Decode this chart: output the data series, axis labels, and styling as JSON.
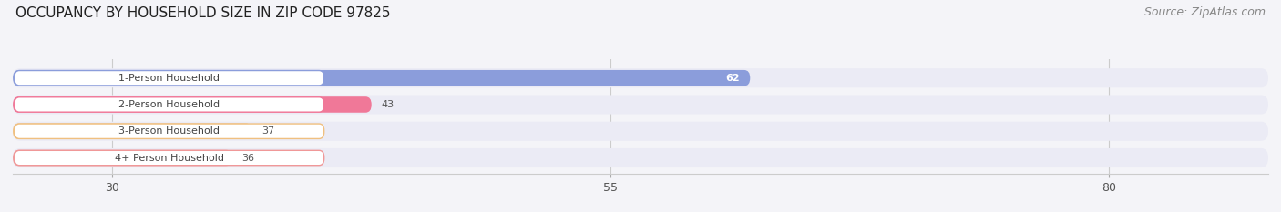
{
  "title": "OCCUPANCY BY HOUSEHOLD SIZE IN ZIP CODE 97825",
  "source": "Source: ZipAtlas.com",
  "categories": [
    "1-Person Household",
    "2-Person Household",
    "3-Person Household",
    "4+ Person Household"
  ],
  "values": [
    62,
    43,
    37,
    36
  ],
  "bar_colors": [
    "#8b9ddb",
    "#f07898",
    "#f0c080",
    "#f09898"
  ],
  "bar_bg_color": "#ebebf5",
  "label_bg_color": "#ffffff",
  "label_border_colors": [
    "#8b9ddb",
    "#f07898",
    "#f0c080",
    "#f09898"
  ],
  "tick_values": [
    30,
    55,
    80
  ],
  "xmin": 25,
  "xlim_max": 88,
  "title_fontsize": 11,
  "source_fontsize": 9,
  "label_fontsize": 8,
  "value_fontsize": 8,
  "tick_fontsize": 9,
  "bar_height": 0.6,
  "background_color": "#f4f4f8",
  "inside_value_threshold": 60
}
